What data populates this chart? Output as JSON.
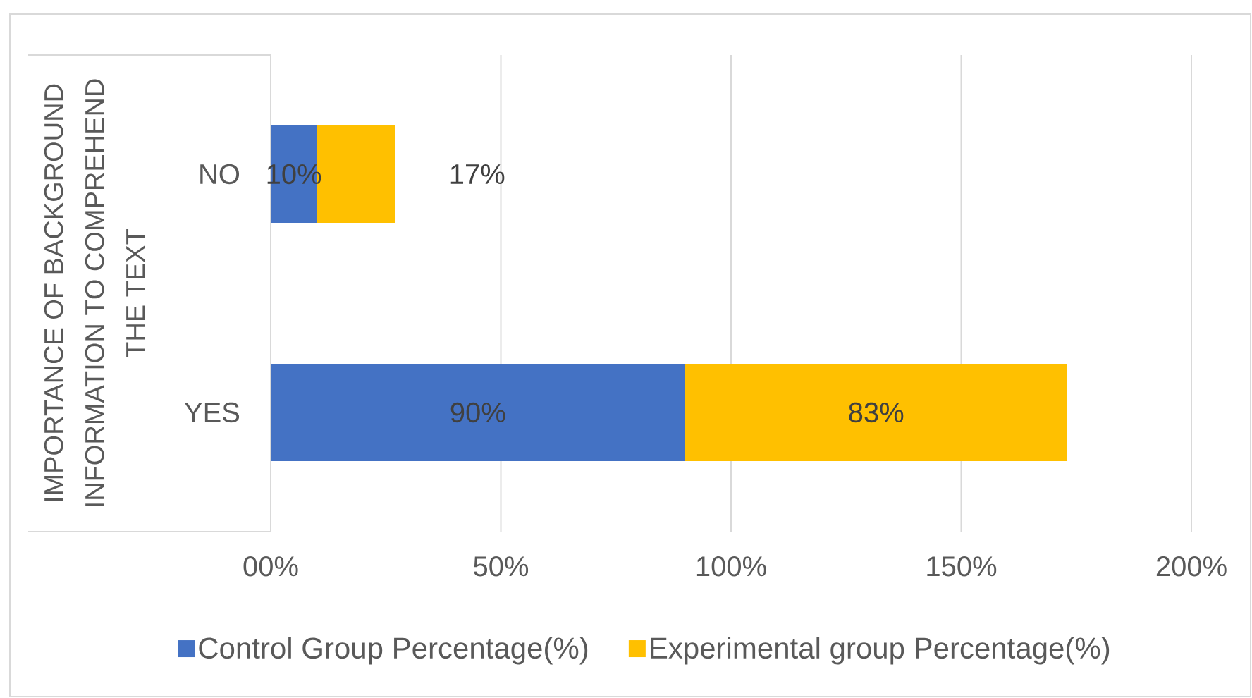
{
  "chart_data": {
    "type": "bar",
    "orientation": "horizontal",
    "stacked": true,
    "ylabel": "IMPORTANCE OF BACKGROUND INFORMATION TO COMPREHEND THE TEXT",
    "categories": [
      "NO",
      "YES"
    ],
    "series": [
      {
        "name": "Control Group Percentage(%)",
        "color": "#4472c4",
        "values": [
          10,
          90
        ],
        "value_labels": [
          "10%",
          "90%"
        ]
      },
      {
        "name": "Experimental group Percentage(%)",
        "color": "#ffc000",
        "values": [
          17,
          83
        ],
        "value_labels": [
          "17%",
          "83%"
        ]
      }
    ],
    "xlim": [
      0,
      200
    ],
    "xticks": [
      {
        "value": 0,
        "label": "00%"
      },
      {
        "value": 50,
        "label": "50%"
      },
      {
        "value": 100,
        "label": "100%"
      },
      {
        "value": 150,
        "label": "150%"
      },
      {
        "value": 200,
        "label": "200%"
      }
    ],
    "grid": "x",
    "legend": "bottom"
  }
}
